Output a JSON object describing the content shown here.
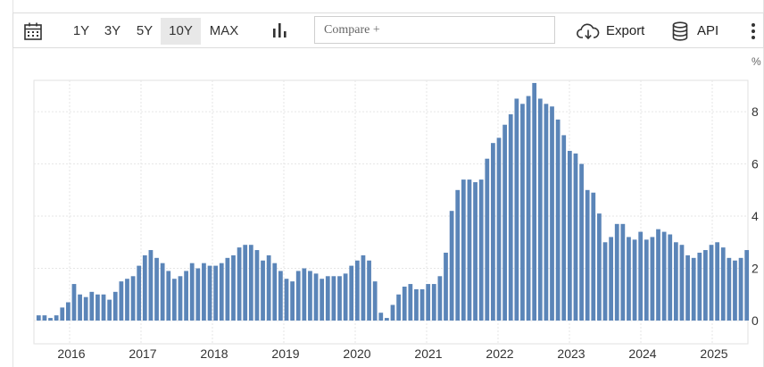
{
  "toolbar": {
    "calendar_icon": "calendar-icon",
    "ranges": [
      "1Y",
      "3Y",
      "5Y",
      "10Y",
      "MAX"
    ],
    "active_range": "10Y",
    "chart_type_icon": "bar-chart-icon",
    "compare_placeholder": "Compare +",
    "export_label": "Export",
    "export_icon": "cloud-download-icon",
    "api_label": "API",
    "api_icon": "database-icon",
    "more_icon": "more-vertical-icon"
  },
  "chart_data": {
    "type": "bar",
    "unit": "%",
    "bar_color": "#5b85b8",
    "grid": true,
    "ylim": [
      0,
      9.2
    ],
    "y_ticks": [
      "0",
      "2",
      "4",
      "6",
      "8"
    ],
    "x_ticks": [
      "2016",
      "2017",
      "2018",
      "2019",
      "2020",
      "2021",
      "2022",
      "2023",
      "2024",
      "2025"
    ],
    "start": "2015-07",
    "end": "2025-07",
    "values": [
      0.2,
      0.2,
      0.1,
      0.2,
      0.5,
      0.7,
      1.4,
      1.0,
      0.9,
      1.1,
      1.0,
      1.0,
      0.8,
      1.1,
      1.5,
      1.6,
      1.7,
      2.1,
      2.5,
      2.7,
      2.4,
      2.2,
      1.9,
      1.6,
      1.7,
      1.9,
      2.2,
      2.0,
      2.2,
      2.1,
      2.1,
      2.2,
      2.4,
      2.5,
      2.8,
      2.9,
      2.9,
      2.7,
      2.3,
      2.5,
      2.2,
      1.9,
      1.6,
      1.5,
      1.9,
      2.0,
      1.9,
      1.8,
      1.6,
      1.7,
      1.7,
      1.7,
      1.8,
      2.1,
      2.3,
      2.5,
      2.3,
      1.5,
      0.3,
      0.1,
      0.6,
      1.0,
      1.3,
      1.4,
      1.2,
      1.2,
      1.4,
      1.4,
      1.7,
      2.6,
      4.2,
      5.0,
      5.4,
      5.4,
      5.3,
      5.4,
      6.2,
      6.8,
      7.0,
      7.5,
      7.9,
      8.5,
      8.3,
      8.6,
      9.1,
      8.5,
      8.3,
      8.2,
      7.7,
      7.1,
      6.5,
      6.4,
      6.0,
      5.0,
      4.9,
      4.1,
      3.0,
      3.2,
      3.7,
      3.7,
      3.2,
      3.1,
      3.4,
      3.1,
      3.2,
      3.5,
      3.4,
      3.3,
      3.0,
      2.9,
      2.5,
      2.4,
      2.6,
      2.7,
      2.9,
      3.0,
      2.8,
      2.4,
      2.3,
      2.4,
      2.7
    ]
  }
}
